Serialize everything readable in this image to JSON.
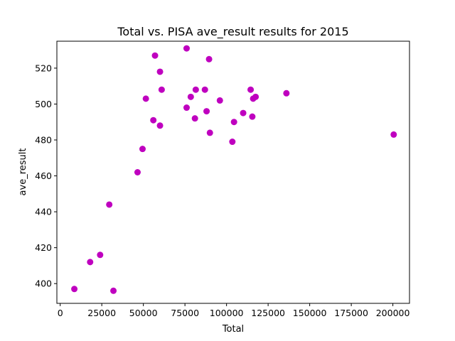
{
  "chart_data": {
    "type": "scatter",
    "title": "Total vs. PISA ave_result results for 2015",
    "xlabel": "Total",
    "ylabel": "ave_result",
    "xlim": [
      -2000,
      210000
    ],
    "ylim": [
      389,
      535
    ],
    "xticks": [
      0,
      25000,
      50000,
      75000,
      100000,
      125000,
      150000,
      175000,
      200000
    ],
    "yticks": [
      400,
      420,
      440,
      460,
      480,
      500,
      520
    ],
    "grid": false,
    "marker_color": "#bf00bf",
    "points": [
      {
        "x": 8500,
        "y": 397
      },
      {
        "x": 18000,
        "y": 412
      },
      {
        "x": 24000,
        "y": 416
      },
      {
        "x": 29500,
        "y": 444
      },
      {
        "x": 32000,
        "y": 396
      },
      {
        "x": 46500,
        "y": 462
      },
      {
        "x": 49500,
        "y": 475
      },
      {
        "x": 51500,
        "y": 503
      },
      {
        "x": 56000,
        "y": 491
      },
      {
        "x": 57000,
        "y": 527
      },
      {
        "x": 60000,
        "y": 518
      },
      {
        "x": 60000,
        "y": 488
      },
      {
        "x": 61000,
        "y": 508
      },
      {
        "x": 76000,
        "y": 531
      },
      {
        "x": 76000,
        "y": 498
      },
      {
        "x": 78500,
        "y": 504
      },
      {
        "x": 81000,
        "y": 492
      },
      {
        "x": 81500,
        "y": 508
      },
      {
        "x": 87000,
        "y": 508
      },
      {
        "x": 88000,
        "y": 496
      },
      {
        "x": 89500,
        "y": 525
      },
      {
        "x": 90000,
        "y": 484
      },
      {
        "x": 96000,
        "y": 502
      },
      {
        "x": 103500,
        "y": 479
      },
      {
        "x": 104500,
        "y": 490
      },
      {
        "x": 110000,
        "y": 495
      },
      {
        "x": 114500,
        "y": 508
      },
      {
        "x": 115500,
        "y": 493
      },
      {
        "x": 116000,
        "y": 503
      },
      {
        "x": 117500,
        "y": 504
      },
      {
        "x": 136000,
        "y": 506
      },
      {
        "x": 200500,
        "y": 483
      }
    ]
  }
}
